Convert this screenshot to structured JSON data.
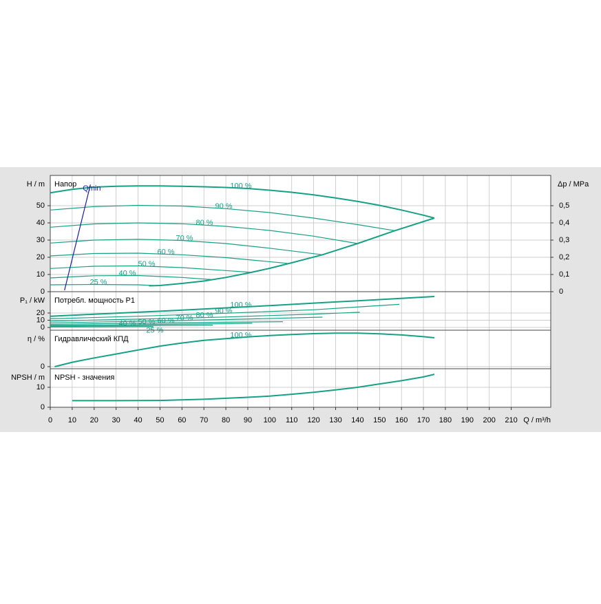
{
  "chart_data": [
    {
      "type": "line",
      "title": "Напор",
      "ylabel": "H / m",
      "y2label": "Δp / MPa",
      "xlim": [
        0,
        228
      ],
      "ylim": [
        0,
        67.6
      ],
      "yticks": [
        0,
        10,
        20,
        30,
        40,
        50
      ],
      "y2lim": [
        0,
        0.676
      ],
      "y2ticks": [
        0,
        {
          "value": 0.1,
          "label": "0,1"
        },
        {
          "value": 0.2,
          "label": "0,2"
        },
        {
          "value": 0.3,
          "label": "0,3"
        },
        {
          "value": 0.4,
          "label": "0,4"
        },
        {
          "value": 0.5,
          "label": "0,5"
        }
      ],
      "grid": true,
      "series": [
        {
          "name": "100 %",
          "color": "#16a085",
          "x": [
            0,
            10,
            20,
            30,
            40,
            50,
            60,
            70,
            80,
            90,
            100,
            110,
            120,
            130,
            140,
            150,
            160,
            170,
            175
          ],
          "values": [
            57.5,
            59.5,
            60.8,
            61.3,
            61.5,
            61.5,
            61.3,
            61,
            60.6,
            60,
            59,
            57.8,
            56.3,
            54.5,
            52.5,
            50.2,
            47.5,
            44.5,
            42.8
          ]
        },
        {
          "name": "90 %",
          "color": "#16a085",
          "x": [
            0,
            20,
            40,
            60,
            80,
            100,
            120,
            140,
            157
          ],
          "values": [
            47.5,
            49.5,
            50.2,
            49.8,
            48.3,
            46,
            42.8,
            39,
            35.5
          ]
        },
        {
          "name": "80 %",
          "color": "#16a085",
          "x": [
            0,
            20,
            40,
            60,
            80,
            100,
            120,
            140
          ],
          "values": [
            37.5,
            39.4,
            40,
            39.5,
            38,
            35.6,
            32.3,
            28
          ]
        },
        {
          "name": "70 %",
          "color": "#16a085",
          "x": [
            0,
            20,
            40,
            60,
            80,
            100,
            124
          ],
          "values": [
            28.3,
            30,
            30.5,
            29.8,
            28,
            25.3,
            21.5
          ]
        },
        {
          "name": "60 %",
          "color": "#16a085",
          "x": [
            0,
            20,
            40,
            60,
            80,
            108
          ],
          "values": [
            20.8,
            22.2,
            22.4,
            21.5,
            19.8,
            16.5
          ]
        },
        {
          "name": "50 %",
          "color": "#16a085",
          "x": [
            0,
            20,
            40,
            60,
            80,
            92
          ],
          "values": [
            13.5,
            14.8,
            15,
            14,
            12.3,
            11.2
          ]
        },
        {
          "name": "40 %",
          "color": "#16a085",
          "x": [
            0,
            20,
            40,
            60,
            74
          ],
          "values": [
            8,
            9.3,
            9.4,
            8.3,
            7
          ]
        },
        {
          "name": "25 %",
          "color": "#16a085",
          "x": [
            0,
            20,
            40,
            47
          ],
          "values": [
            4,
            4.2,
            4,
            3.6
          ]
        },
        {
          "color": "#16a085",
          "x": [
            45,
            50,
            60,
            70,
            80,
            90,
            100,
            110,
            124,
            140,
            157,
            175
          ],
          "values": [
            3.4,
            3.6,
            4.8,
            6.2,
            8.3,
            10.8,
            13.6,
            16.8,
            21.5,
            28,
            35.5,
            42.8
          ]
        },
        {
          "name": "Qmin",
          "color": "#1a1aa8",
          "x": [
            6.5,
            18.3
          ],
          "values": [
            0.8,
            62.3
          ]
        }
      ]
    },
    {
      "type": "line",
      "title": "Потребл. мощность P1",
      "ylabel": "P₁ / kW",
      "xlim": [
        0,
        228
      ],
      "ylim": [
        -3.8,
        49.5
      ],
      "yticks": [
        0,
        10,
        20
      ],
      "grid": true,
      "series": [
        {
          "name": "100 %",
          "color": "#16a085",
          "x": [
            0,
            25,
            50,
            75,
            100,
            125,
            150,
            175
          ],
          "values": [
            15.5,
            19,
            22.5,
            26.3,
            30.3,
            34.5,
            38.6,
            42.8
          ]
        },
        {
          "name": "90 %",
          "color": "#16a085",
          "x": [
            0,
            40,
            80,
            120,
            159
          ],
          "values": [
            12,
            15.5,
            19.7,
            24.5,
            32
          ]
        },
        {
          "name": "80 %",
          "color": "#16a085",
          "x": [
            0,
            40,
            80,
            120,
            141
          ],
          "values": [
            9,
            11.5,
            14.5,
            18.5,
            21
          ]
        },
        {
          "name": "70 %",
          "color": "#16a085",
          "x": [
            0,
            40,
            80,
            124
          ],
          "values": [
            6.5,
            8.5,
            11,
            14.3
          ]
        },
        {
          "name": "60 %",
          "color": "#16a085",
          "x": [
            0,
            40,
            80,
            106
          ],
          "values": [
            4.5,
            5.8,
            7.2,
            8
          ]
        },
        {
          "name": "50 %",
          "color": "#16a085",
          "x": [
            0,
            40,
            80,
            92
          ],
          "values": [
            3,
            4,
            5.2,
            5.8
          ]
        },
        {
          "name": "40 %",
          "color": "#16a085",
          "x": [
            0,
            40,
            74
          ],
          "values": [
            1.8,
            2.5,
            3.2
          ]
        },
        {
          "name": "25 %",
          "color": "#16a085",
          "x": [
            0,
            47
          ],
          "values": [
            0.8,
            1.2
          ]
        }
      ]
    },
    {
      "type": "line",
      "title": "Гидравлический КПД",
      "ylabel": "η / %",
      "xlim": [
        0,
        228
      ],
      "ylim": [
        -4.7,
        83.3
      ],
      "yticks": [
        0
      ],
      "grid": true,
      "series": [
        {
          "name": "100 %",
          "color": "#16a085",
          "x": [
            2,
            10,
            20,
            30,
            40,
            50,
            60,
            70,
            80,
            90,
            100,
            110,
            120,
            130,
            140,
            150,
            160,
            170,
            175
          ],
          "values": [
            0,
            10,
            20,
            29,
            38,
            47,
            54,
            60,
            64,
            68,
            71,
            73.5,
            75.5,
            76.5,
            76.5,
            75,
            72.5,
            68.5,
            66
          ]
        }
      ]
    },
    {
      "type": "line",
      "title": "NPSH - значения",
      "ylabel": "NPSH / m",
      "xlabel": "Q / m³/h",
      "xlim": [
        0,
        228
      ],
      "ylim": [
        0,
        19.3
      ],
      "yticks": [
        0,
        10
      ],
      "grid": true,
      "xticks": [
        0,
        10,
        20,
        30,
        40,
        50,
        60,
        70,
        80,
        90,
        100,
        110,
        120,
        130,
        140,
        150,
        160,
        170,
        180,
        190,
        200,
        210
      ],
      "series": [
        {
          "color": "#16a085",
          "x": [
            10,
            30,
            50,
            70,
            90,
            100,
            110,
            120,
            130,
            140,
            150,
            160,
            170,
            175
          ],
          "values": [
            3.3,
            3.3,
            3.4,
            4,
            5,
            5.6,
            6.5,
            7.5,
            8.7,
            10,
            11.7,
            13.3,
            15.2,
            16.5
          ]
        }
      ]
    }
  ]
}
